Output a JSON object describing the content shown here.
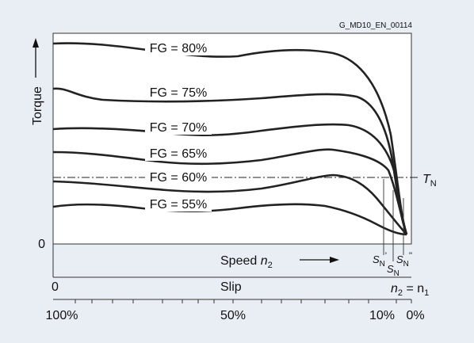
{
  "header": {
    "code": "G_MD10_EN_00114"
  },
  "chart_data": {
    "type": "line",
    "x_axis": {
      "label_prefix": "Speed",
      "label_var": "n",
      "label_sub": "2",
      "direction": "increasing to the right"
    },
    "y_axis": {
      "label": "Torque",
      "origin_label": "0"
    },
    "rated_torque": {
      "label_main": "T",
      "label_sub": "N"
    },
    "slip_axis": {
      "title": "Slip",
      "left_label": "0",
      "right_label": {
        "main": "n",
        "sub2": "2",
        "equals": " = n",
        "sub1": "1"
      },
      "ticks": [
        "100%",
        "50%",
        "10%",
        "0%"
      ]
    },
    "slip_markers": [
      {
        "main": "S",
        "sub": "N",
        "prime": "'"
      },
      {
        "main": "S",
        "sub": "N",
        "prime": ""
      },
      {
        "main": "S",
        "sub": "N",
        "prime": "''"
      }
    ],
    "series": [
      {
        "name": "FG = 80%"
      },
      {
        "name": "FG = 75%"
      },
      {
        "name": "FG = 70%"
      },
      {
        "name": "FG = 65%"
      },
      {
        "name": "FG = 60%"
      },
      {
        "name": "FG = 55%"
      }
    ]
  },
  "colors": {
    "background": "#e9eef5",
    "plot": "#ffffff",
    "line": "#222222"
  }
}
